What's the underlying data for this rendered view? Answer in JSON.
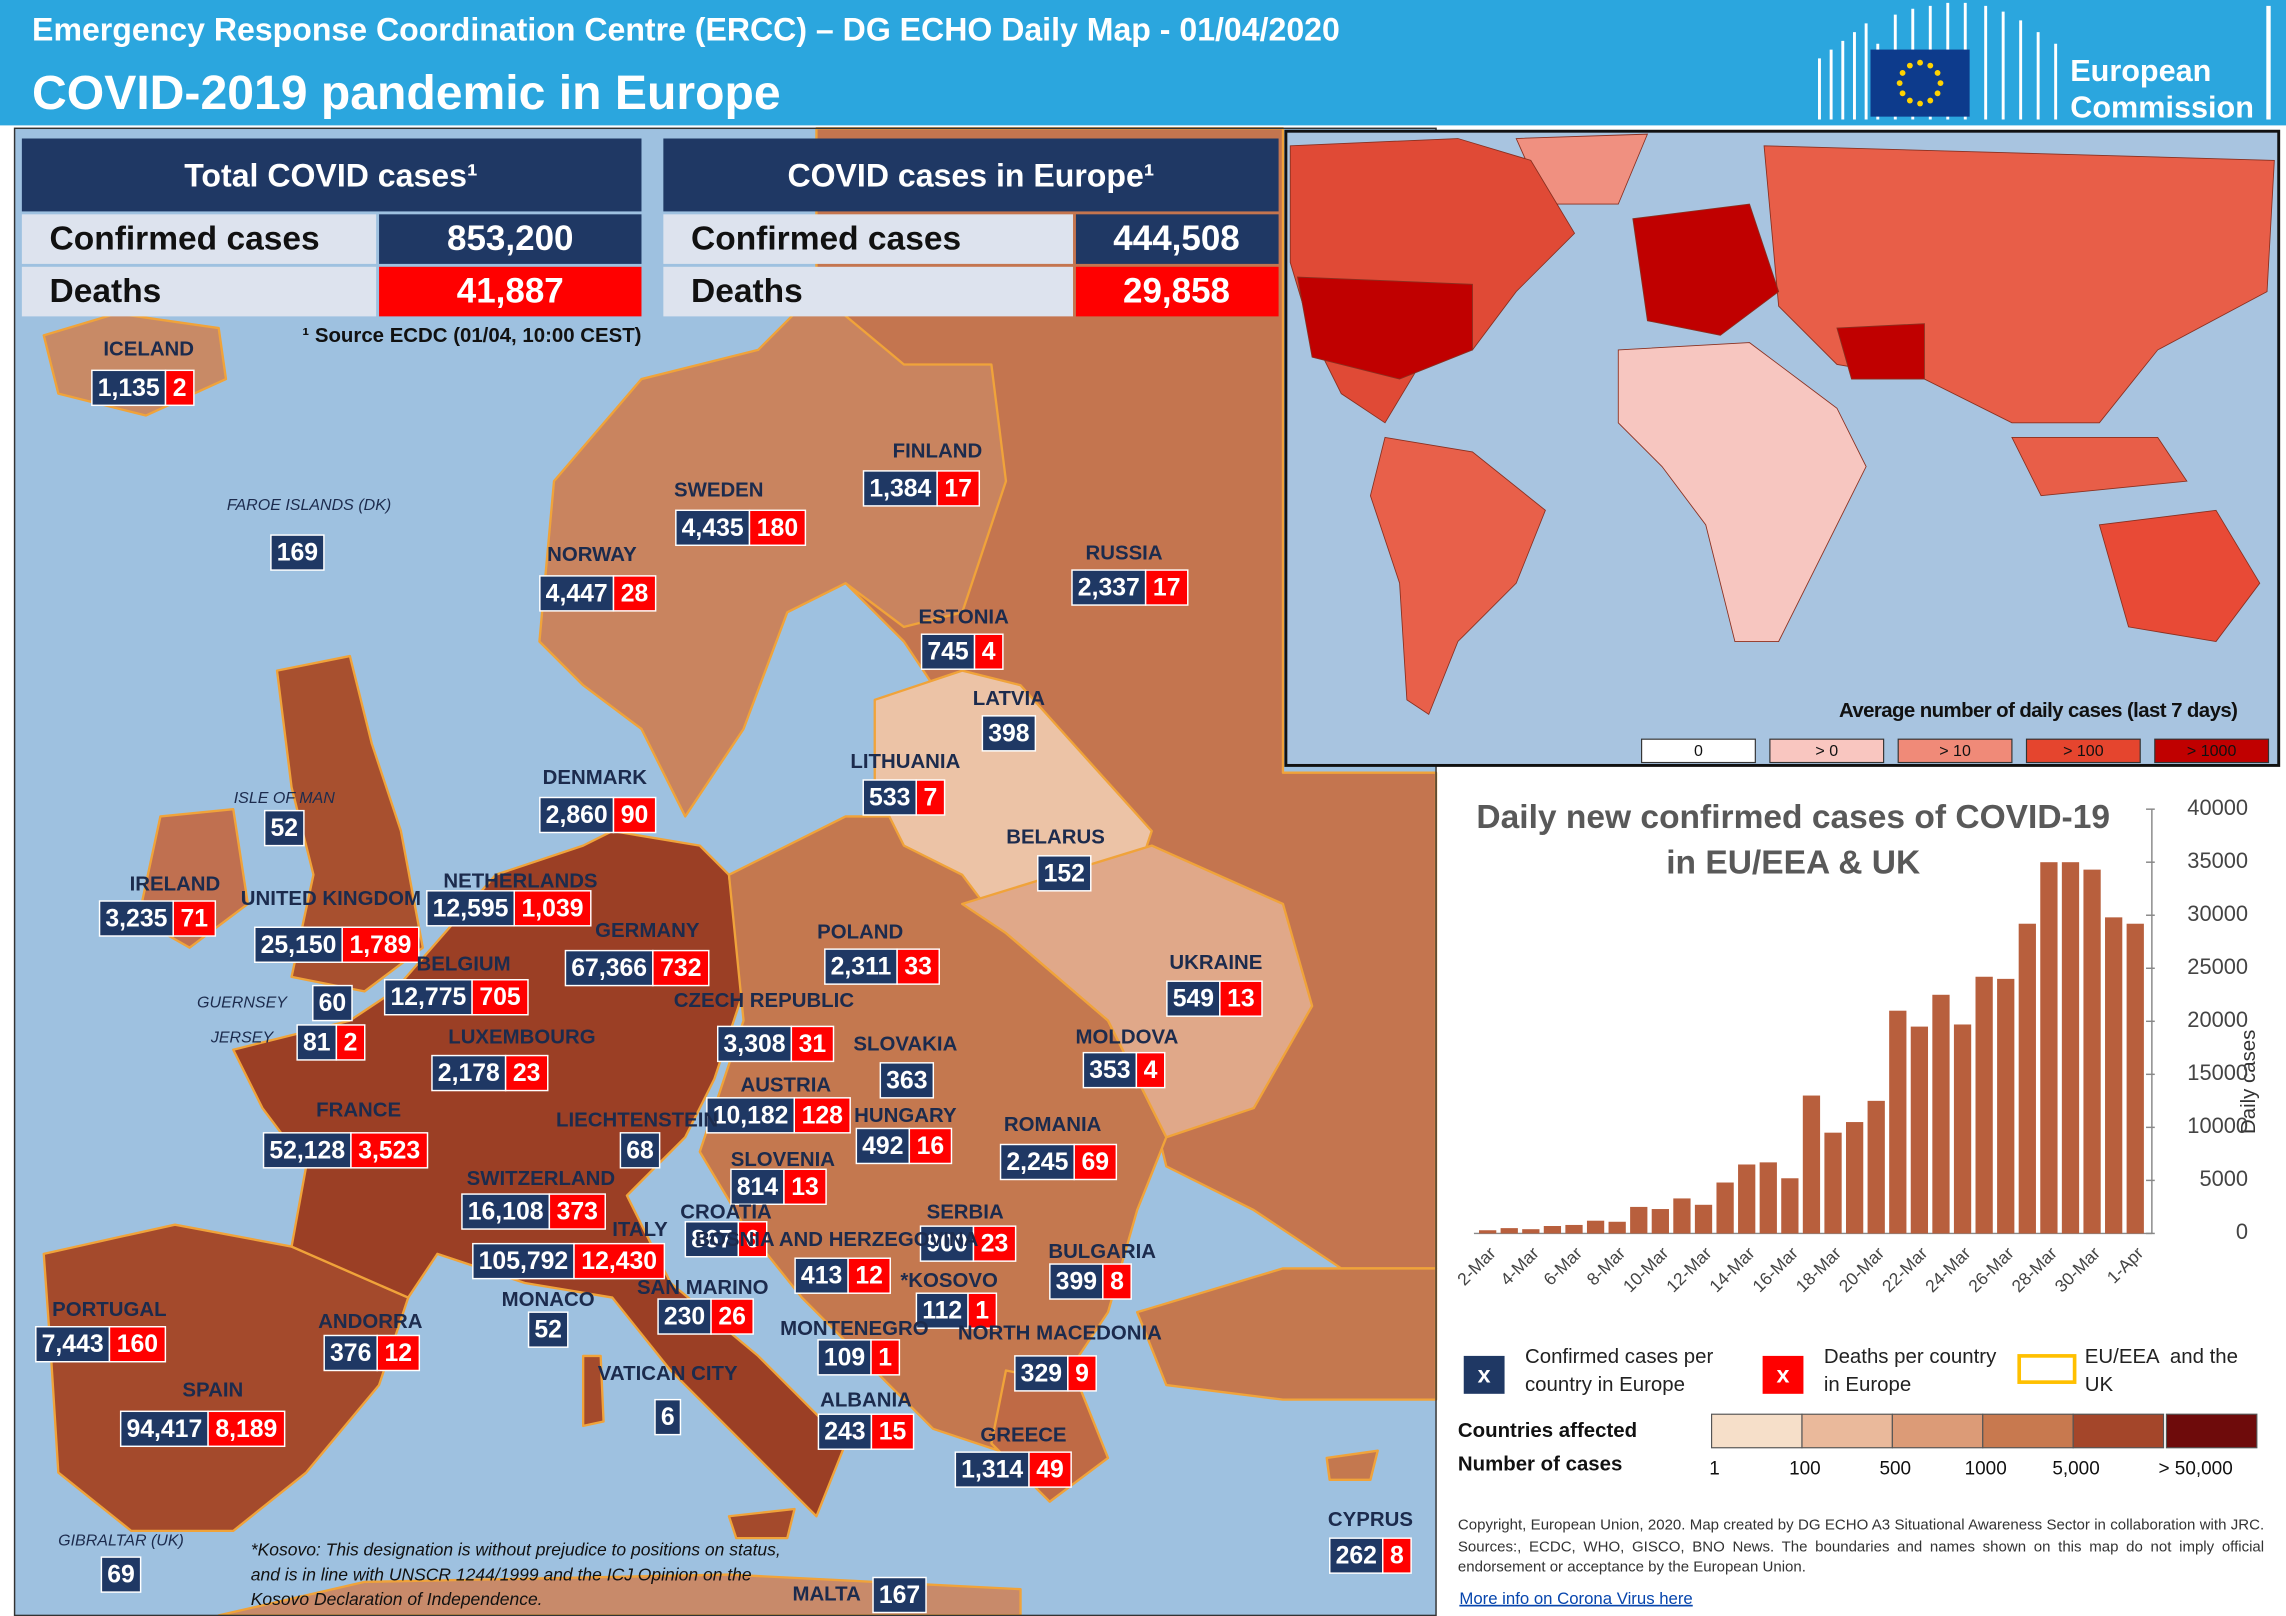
{
  "header": {
    "title": "Emergency Response Coordination  Centre (ERCC) – DG ECHO Daily Map - 01/04/2020",
    "subtitle": "COVID-2019 pandemic in Europe",
    "logo": [
      "European",
      "Commission"
    ]
  },
  "totals": [
    {
      "title": "Total COVID cases¹",
      "rows": [
        [
          "Confirmed cases",
          "853,200"
        ],
        [
          "Deaths",
          "41,887"
        ]
      ]
    },
    {
      "title": "COVID cases in Europe¹",
      "rows": [
        [
          "Confirmed cases",
          "444,508"
        ],
        [
          "Deaths",
          "29,858"
        ]
      ]
    }
  ],
  "source_note": "¹ Source ECDC (01/04, 10:00 CEST)",
  "countries": [
    {
      "name": "ICELAND",
      "cases": "1,135",
      "deaths": "2"
    },
    {
      "name": "FAROE ISLANDS (DK)",
      "cases": "169"
    },
    {
      "name": "SWEDEN",
      "cases": "4,435",
      "deaths": "180"
    },
    {
      "name": "FINLAND",
      "cases": "1,384",
      "deaths": "17"
    },
    {
      "name": "NORWAY",
      "cases": "4,447",
      "deaths": "28"
    },
    {
      "name": "RUSSIA",
      "cases": "2,337",
      "deaths": "17"
    },
    {
      "name": "ESTONIA",
      "cases": "745",
      "deaths": "4"
    },
    {
      "name": "LATVIA",
      "cases": "398"
    },
    {
      "name": "LITHUANIA",
      "cases": "533",
      "deaths": "7"
    },
    {
      "name": "DENMARK",
      "cases": "2,860",
      "deaths": "90"
    },
    {
      "name": "BELARUS",
      "cases": "152"
    },
    {
      "name": "ISLE OF MAN",
      "cases": "52"
    },
    {
      "name": "IRELAND",
      "cases": "3,235",
      "deaths": "71"
    },
    {
      "name": "UNITED KINGDOM",
      "cases": "25,150",
      "deaths": "1,789"
    },
    {
      "name": "NETHERLANDS",
      "cases": "12,595",
      "deaths": "1,039"
    },
    {
      "name": "GERMANY",
      "cases": "67,366",
      "deaths": "732"
    },
    {
      "name": "POLAND",
      "cases": "2,311",
      "deaths": "33"
    },
    {
      "name": "UKRAINE",
      "cases": "549",
      "deaths": "13"
    },
    {
      "name": "BELGIUM",
      "cases": "12,775",
      "deaths": "705"
    },
    {
      "name": "GUERNSEY",
      "cases": "60"
    },
    {
      "name": "JERSEY",
      "cases": "81",
      "deaths": "2"
    },
    {
      "name": "CZECH REPUBLIC",
      "cases": "3,308",
      "deaths": "31"
    },
    {
      "name": "SLOVAKIA",
      "cases": "363"
    },
    {
      "name": "MOLDOVA",
      "cases": "353",
      "deaths": "4"
    },
    {
      "name": "LUXEMBOURG",
      "cases": "2,178",
      "deaths": "23"
    },
    {
      "name": "AUSTRIA",
      "cases": "10,182",
      "deaths": "128"
    },
    {
      "name": "FRANCE",
      "cases": "52,128",
      "deaths": "3,523"
    },
    {
      "name": "LIECHTENSTEIN",
      "cases": "68"
    },
    {
      "name": "HUNGARY",
      "cases": "492",
      "deaths": "16"
    },
    {
      "name": "ROMANIA",
      "cases": "2,245",
      "deaths": "69"
    },
    {
      "name": "SLOVENIA",
      "cases": "814",
      "deaths": "13"
    },
    {
      "name": "SWITZERLAND",
      "cases": "16,108",
      "deaths": "373"
    },
    {
      "name": "CROATIA",
      "cases": "867",
      "deaths": "6"
    },
    {
      "name": "SERBIA",
      "cases": "900",
      "deaths": "23"
    },
    {
      "name": "ITALY",
      "cases": "105,792",
      "deaths": "12,430"
    },
    {
      "name": "BOSNIA AND HERZEGOVINA",
      "cases": "413",
      "deaths": "12"
    },
    {
      "name": "BULGARIA",
      "cases": "399",
      "deaths": "8"
    },
    {
      "name": "*KOSOVO",
      "cases": "112",
      "deaths": "1"
    },
    {
      "name": "PORTUGAL",
      "cases": "7,443",
      "deaths": "160"
    },
    {
      "name": "ANDORRA",
      "cases": "376",
      "deaths": "12"
    },
    {
      "name": "MONACO",
      "cases": "52"
    },
    {
      "name": "SAN MARINO",
      "cases": "230",
      "deaths": "26"
    },
    {
      "name": "MONTENEGRO",
      "cases": "109",
      "deaths": "1"
    },
    {
      "name": "NORTH MACEDONIA",
      "cases": "329",
      "deaths": "9"
    },
    {
      "name": "SPAIN",
      "cases": "94,417",
      "deaths": "8,189"
    },
    {
      "name": "VATICAN CITY",
      "cases": "6"
    },
    {
      "name": "ALBANIA",
      "cases": "243",
      "deaths": "15"
    },
    {
      "name": "GREECE",
      "cases": "1,314",
      "deaths": "49"
    },
    {
      "name": "CYPRUS",
      "cases": "262",
      "deaths": "8"
    },
    {
      "name": "GIBRALTAR (UK)",
      "cases": "69"
    },
    {
      "name": "MALTA",
      "cases": "167"
    }
  ],
  "world_map": {
    "legend_title": "Average number of daily cases (last 7 days)",
    "legend": [
      "0",
      "> 0",
      "> 10",
      "> 100",
      "> 1000"
    ],
    "colors": [
      "#ffffff",
      "#f9c6c0",
      "#f08a78",
      "#e5452e",
      "#c00000"
    ]
  },
  "chart_data": {
    "type": "bar",
    "title": "Daily new confirmed cases of COVID-19 in EU/EEA & UK",
    "y_label": "Daily cases",
    "categories": [
      "2-Mar",
      null,
      "4-Mar",
      null,
      "6-Mar",
      null,
      "8-Mar",
      null,
      "10-Mar",
      null,
      "12-Mar",
      null,
      "14-Mar",
      null,
      "16-Mar",
      null,
      "18-Mar",
      null,
      "20-Mar",
      null,
      "22-Mar",
      null,
      "24-Mar",
      null,
      "26-Mar",
      null,
      "28-Mar",
      null,
      "30-Mar",
      null,
      "1-Apr"
    ],
    "values": [
      300,
      500,
      400,
      700,
      800,
      1200,
      1100,
      2500,
      2300,
      3300,
      2700,
      4800,
      6500,
      6700,
      5200,
      13000,
      9500,
      10500,
      12500,
      21000,
      19500,
      22500,
      19700,
      24200,
      24000,
      29200,
      35000,
      35000,
      34300,
      29800,
      29200
    ],
    "color": "#b85f3d",
    "ylim": [
      0,
      40000
    ],
    "yticks": [
      0,
      5000,
      10000,
      15000,
      20000,
      25000,
      30000,
      35000,
      40000
    ]
  },
  "legend": {
    "cases_symbol": "x",
    "cases": "Confirmed cases per country in Europe",
    "deaths_symbol": "x",
    "deaths": "Deaths per country in Europe",
    "eu": "EU/EEA  and the UK",
    "scale_title": [
      "Countries affected",
      "Number of cases"
    ],
    "scale_labels": [
      "1",
      "100",
      "500",
      "1000",
      "5,000",
      "> 50,000"
    ],
    "scale_colors": [
      "#f6dfc9",
      "#eab99b",
      "#dc9b77",
      "#c8794f",
      "#a4462a",
      "#6e0b0b"
    ]
  },
  "kosovo_note": "*Kosovo: This designation is without prejudice to positions on status, and is in line with UNSCR 1244/1999 and the ICJ Opinion on the Kosovo Declaration of Independence.",
  "copyright": "Copyright, European Union, 2020. Map created by DG ECHO A3 Situational Awareness Sector in collaboration with JRC. Sources:, ECDC, WHO, GISCO, BNO News. The boundaries and names shown on this map do not imply official endorsement or acceptance by the European Union.",
  "link": "More info on Corona Virus here"
}
